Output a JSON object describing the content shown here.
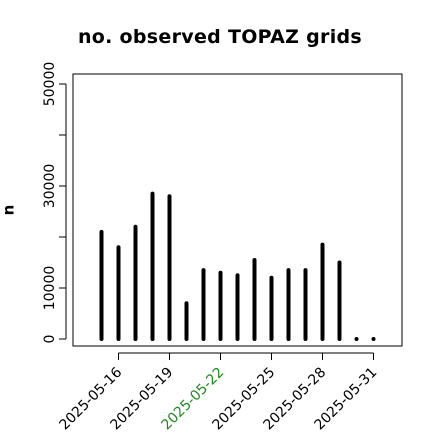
{
  "chart_data": {
    "type": "bar",
    "title": "no. observed TOPAZ grids",
    "xlabel": "",
    "ylabel": "n",
    "x": [
      "2025-05-15",
      "2025-05-16",
      "2025-05-17",
      "2025-05-18",
      "2025-05-19",
      "2025-05-20",
      "2025-05-21",
      "2025-05-22",
      "2025-05-23",
      "2025-05-24",
      "2025-05-25",
      "2025-05-26",
      "2025-05-27",
      "2025-05-28",
      "2025-05-29",
      "2025-05-30",
      "2025-05-31"
    ],
    "values": [
      21000,
      18000,
      22000,
      28500,
      28000,
      7000,
      13500,
      13000,
      12500,
      15500,
      12000,
      13500,
      13500,
      18500,
      15000,
      0,
      0
    ],
    "ylim": [
      0,
      50000
    ],
    "yticks": [
      0,
      10000,
      20000,
      30000,
      40000,
      50000
    ],
    "ytick_labels": [
      "0",
      "10000",
      "",
      "30000",
      "",
      "50000"
    ],
    "xtick_labels": [
      "2025-05-16",
      "2025-05-19",
      "2025-05-22",
      "2025-05-25",
      "2025-05-28",
      "2025-05-31"
    ],
    "xtick_colors": [
      "#000000",
      "#000000",
      "#1f8a1f",
      "#000000",
      "#000000",
      "#000000"
    ],
    "bar_color": "#000000",
    "zero_marker_color": "#000000",
    "grid": false,
    "legend": "none"
  }
}
